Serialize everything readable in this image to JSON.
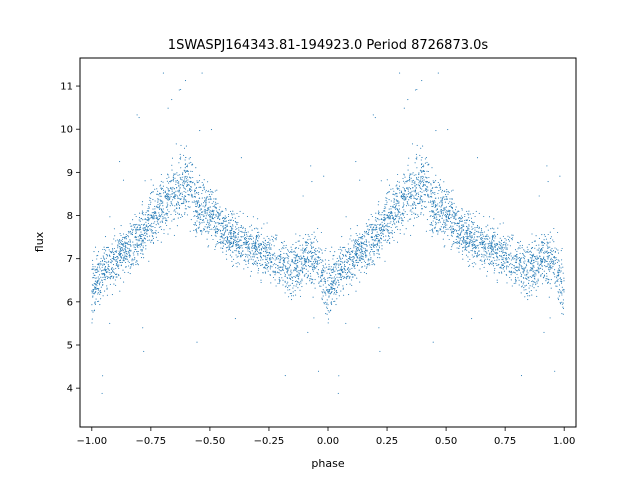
{
  "chart_data": {
    "type": "scatter",
    "title": "1SWASPJ164343.81-194923.0 Period 8726873.0s",
    "xlabel": "phase",
    "ylabel": "flux",
    "xlim": [
      -1.05,
      1.05
    ],
    "ylim": [
      3.1,
      11.65
    ],
    "xticks": [
      -1.0,
      -0.75,
      -0.5,
      -0.25,
      0.0,
      0.25,
      0.5,
      0.75,
      1.0
    ],
    "xtick_labels": [
      "−1.00",
      "−0.75",
      "−0.50",
      "−0.25",
      "0.00",
      "0.25",
      "0.50",
      "0.75",
      "1.00"
    ],
    "yticks": [
      4,
      5,
      6,
      7,
      8,
      9,
      10,
      11
    ],
    "ytick_labels": [
      "4",
      "5",
      "6",
      "7",
      "8",
      "9",
      "10",
      "11"
    ],
    "grid": false,
    "legend": "none",
    "marker_color": "#1f77b4",
    "profile": {
      "phase": [
        0.0,
        0.05,
        0.1,
        0.15,
        0.2,
        0.25,
        0.3,
        0.35,
        0.4,
        0.45,
        0.5,
        0.55,
        0.6,
        0.65,
        0.7,
        0.75,
        0.8,
        0.85,
        0.9,
        0.95,
        1.0
      ],
      "flux": [
        6.3,
        6.7,
        7.0,
        7.2,
        7.5,
        7.9,
        8.2,
        8.5,
        8.8,
        8.2,
        8.0,
        7.7,
        7.5,
        7.3,
        7.2,
        7.0,
        6.9,
        6.7,
        7.0,
        7.0,
        6.3
      ],
      "scatter": [
        0.7,
        0.5,
        0.5,
        0.5,
        0.6,
        0.6,
        0.6,
        0.7,
        0.8,
        0.7,
        0.6,
        0.5,
        0.5,
        0.5,
        0.5,
        0.5,
        0.5,
        0.6,
        0.6,
        0.6,
        0.7
      ]
    }
  }
}
